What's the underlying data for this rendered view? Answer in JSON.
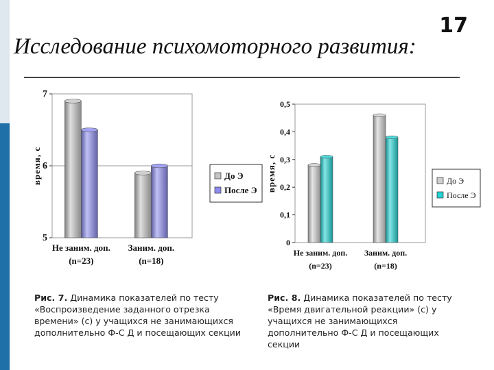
{
  "slide": {
    "number": "17",
    "title": "Исследование психомоторного развития:",
    "accent_color": "#1f6fa8",
    "accent_light": "#dfe7ef"
  },
  "chart_data": [
    {
      "type": "bar",
      "title": "",
      "ylabel": "время, с",
      "xlabel": "",
      "categories": [
        "Не заним. доп.",
        "Заним. доп."
      ],
      "category_sublabels": [
        "(n=23)",
        "(n=18)"
      ],
      "series": [
        {
          "name": "До Э",
          "values": [
            6.9,
            5.9
          ],
          "color": "#c4c4c4"
        },
        {
          "name": "После Э",
          "values": [
            6.5,
            6.0
          ],
          "color": "#8c8cf0"
        }
      ],
      "ylim": [
        5,
        7
      ],
      "yticks": [
        "5",
        "6",
        "7"
      ],
      "grid": true,
      "legend": "right",
      "caption_label": "Рис. 7.",
      "caption_text": "Динамика показателей по тесту «Воспроизведение заданного отрезка времени» (с) у учащихся не занимающихся дополнительно Ф-С Д и посещающих секции"
    },
    {
      "type": "bar",
      "title": "",
      "ylabel": "время, с",
      "xlabel": "",
      "categories": [
        "Не заним. доп.",
        "Заним. доп."
      ],
      "category_sublabels": [
        "(n=23)",
        "(n=18)"
      ],
      "series": [
        {
          "name": "До Э",
          "values": [
            0.28,
            0.46
          ],
          "color": "#d0d0d0"
        },
        {
          "name": "После Э",
          "values": [
            0.31,
            0.38
          ],
          "color": "#22d3d3"
        }
      ],
      "ylim": [
        0,
        0.5
      ],
      "yticks": [
        "0",
        "0,1",
        "0,2",
        "0,3",
        "0,4",
        "0,5"
      ],
      "grid": false,
      "legend": "right",
      "caption_label": "Рис. 8.",
      "caption_text": "Динамика показателей по тесту «Время двигательной реакции» (с) у учащихся не занимающихся дополнительно Ф-С Д и посещающих секции"
    }
  ]
}
